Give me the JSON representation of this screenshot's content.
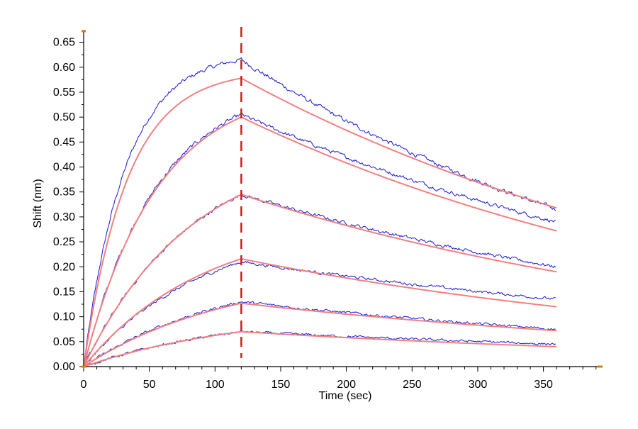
{
  "chart_data": {
    "type": "line",
    "title": "",
    "xlabel": "Time (sec)",
    "ylabel": "Shift (nm)",
    "xlim": [
      0,
      395
    ],
    "ylim": [
      0,
      0.675
    ],
    "x_ticks": [
      0,
      50,
      100,
      150,
      200,
      250,
      300,
      350
    ],
    "x_tick_labels": [
      "0",
      "50",
      "100",
      "150",
      "200",
      "250",
      "300",
      "350"
    ],
    "y_ticks": [
      0,
      0.05,
      0.1,
      0.15,
      0.2,
      0.25,
      0.3,
      0.35,
      0.4,
      0.45,
      0.5,
      0.55,
      0.6,
      0.65
    ],
    "y_tick_labels": [
      "0.00",
      "0.05",
      "0.10",
      "0.15",
      "0.20",
      "0.25",
      "0.30",
      "0.35",
      "0.40",
      "0.45",
      "0.50",
      "0.55",
      "0.60",
      "0.65"
    ],
    "grid": false,
    "dissociation_start": 120,
    "association_end_time": 120,
    "end_time": 360,
    "colors": {
      "measured": "#2b2bd9",
      "fit": "#f28080",
      "marker_line": "#c81e1e",
      "axis": "#000000",
      "axis_end_marks": "#e07b00"
    },
    "measured_series": [
      {
        "peak": 0.615,
        "end": 0.315
      },
      {
        "peak": 0.505,
        "end": 0.29
      },
      {
        "peak": 0.345,
        "end": 0.2
      },
      {
        "peak": 0.21,
        "end": 0.135
      },
      {
        "peak": 0.13,
        "end": 0.075
      },
      {
        "peak": 0.07,
        "end": 0.045
      }
    ],
    "fit_series": [
      {
        "peak": 0.578,
        "end": 0.318,
        "kon_shape": 0.03
      },
      {
        "peak": 0.5,
        "end": 0.272,
        "kon_shape": 0.018
      },
      {
        "peak": 0.345,
        "end": 0.19,
        "kon_shape": 0.012
      },
      {
        "peak": 0.216,
        "end": 0.12,
        "kon_shape": 0.011
      },
      {
        "peak": 0.127,
        "end": 0.072,
        "kon_shape": 0.009
      },
      {
        "peak": 0.07,
        "end": 0.04,
        "kon_shape": 0.008
      }
    ]
  }
}
